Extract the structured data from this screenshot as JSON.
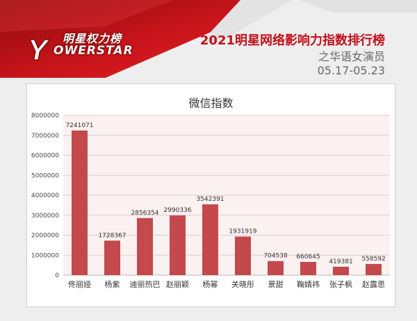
{
  "logo": {
    "cn_text": "明星权力榜",
    "en_text": "OWERSTAR",
    "mark": "Y"
  },
  "header": {
    "title": "2021明星网络影响力指数排行榜",
    "subtitle": "之华语女演员",
    "date_range": "05.17-05.23"
  },
  "colors": {
    "brand_red": "#c3101a",
    "bar": "#c4494d",
    "text_gray": "#666666"
  },
  "chart_data": {
    "type": "bar",
    "title": "微信指数",
    "xlabel": "",
    "ylabel": "",
    "categories": [
      "佟丽娅",
      "杨紫",
      "迪丽热巴",
      "赵丽颖",
      "杨幂",
      "关晓彤",
      "景甜",
      "鞠婧祎",
      "张子枫",
      "赵露思"
    ],
    "values": [
      7241071,
      1728367,
      2856354,
      2990336,
      3542391,
      1931919,
      704538,
      660645,
      419381,
      558592
    ],
    "ylim": [
      0,
      8000000
    ],
    "yticks": [
      "0",
      "1000000",
      "2000000",
      "3000000",
      "4000000",
      "5000000",
      "6000000",
      "7000000",
      "8000000"
    ],
    "grid": true,
    "legend": "none"
  }
}
